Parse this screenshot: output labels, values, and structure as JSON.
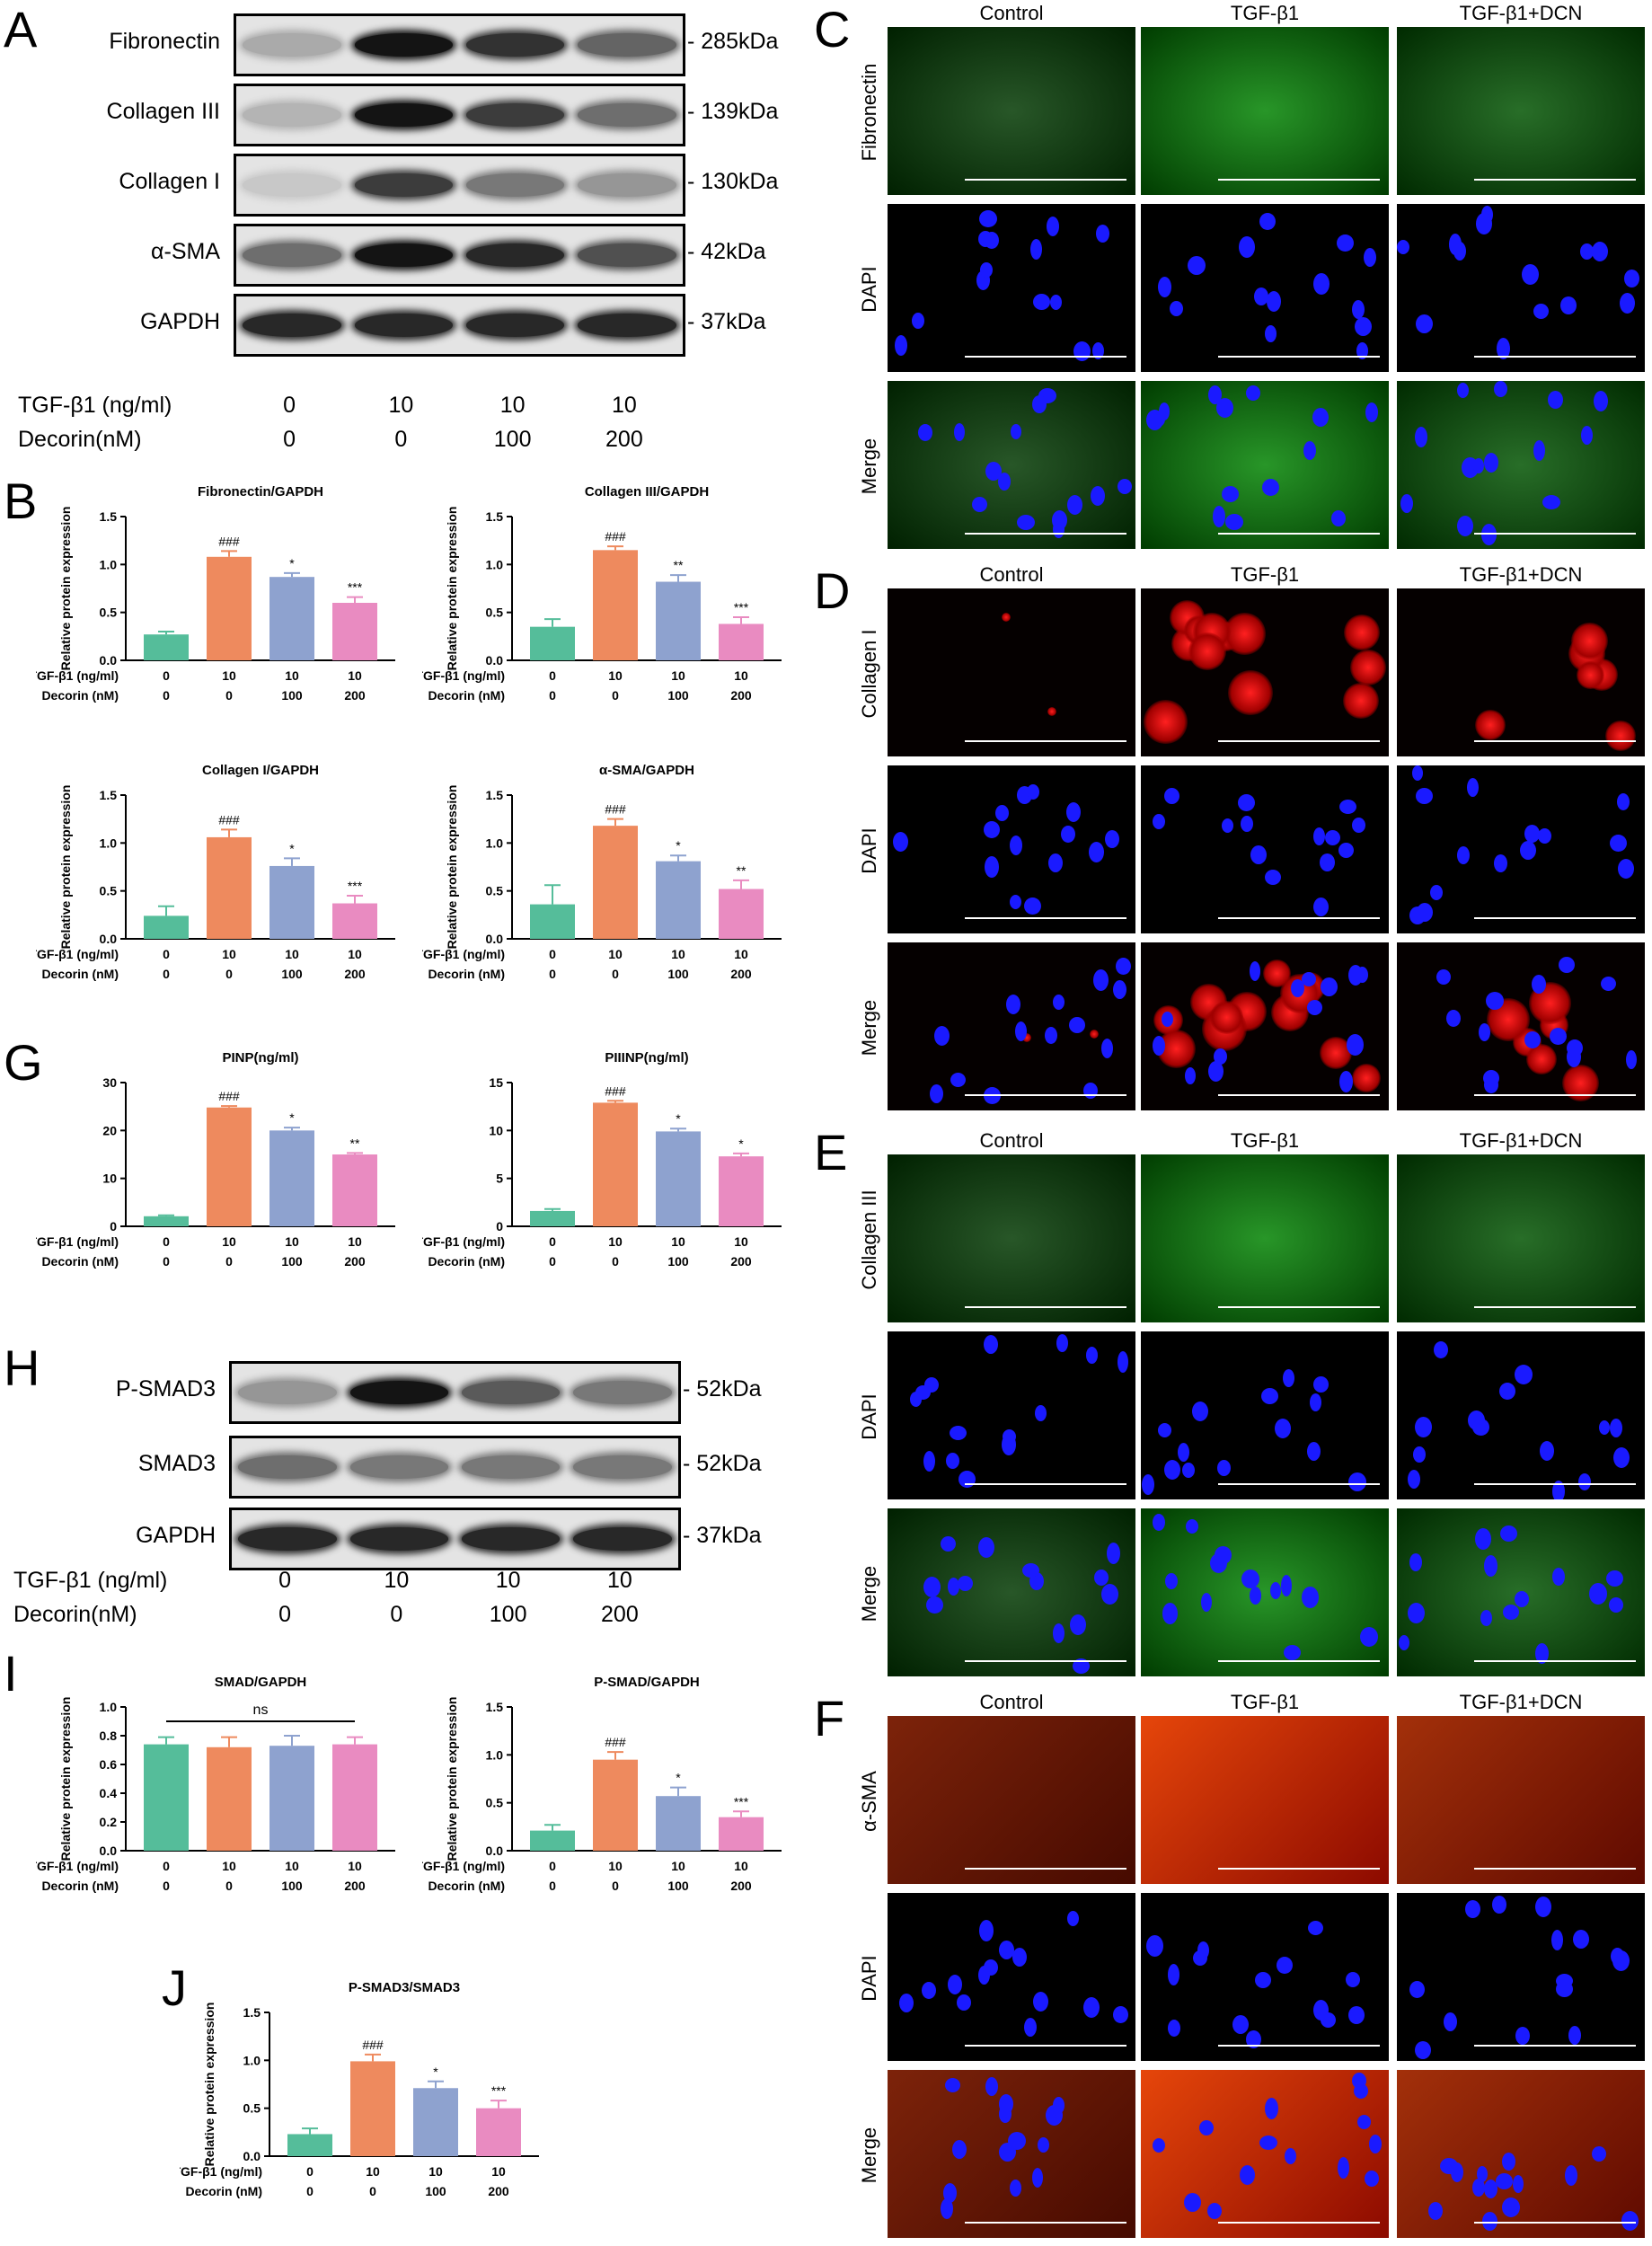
{
  "panels": {
    "A": "A",
    "B": "B",
    "C": "C",
    "D": "D",
    "E": "E",
    "F": "F",
    "G": "G",
    "H": "H",
    "I": "I",
    "J": "J"
  },
  "blotA": {
    "rows": [
      {
        "label": "Fibronectin",
        "kda": "- 285kDa",
        "intensity": [
          0.25,
          1.0,
          0.85,
          0.6
        ]
      },
      {
        "label": "Collagen III",
        "kda": "- 139kDa",
        "intensity": [
          0.2,
          1.0,
          0.8,
          0.55
        ]
      },
      {
        "label": "Collagen I",
        "kda": "- 130kDa",
        "intensity": [
          0.1,
          0.8,
          0.5,
          0.35
        ]
      },
      {
        "label": "α-SMA",
        "kda": "- 42kDa",
        "intensity": [
          0.55,
          1.0,
          0.9,
          0.7
        ]
      },
      {
        "label": "GAPDH",
        "kda": "- 37kDa",
        "intensity": [
          0.9,
          0.9,
          0.9,
          0.9
        ]
      }
    ],
    "cond_labels": [
      "TGF-β1 (ng/ml)",
      "Decorin(nM)"
    ],
    "tgf": [
      "0",
      "10",
      "10",
      "10"
    ],
    "decorin": [
      "0",
      "0",
      "100",
      "200"
    ]
  },
  "blotH": {
    "rows": [
      {
        "label": "P-SMAD3",
        "kda": "- 52kDa",
        "intensity": [
          0.35,
          1.0,
          0.65,
          0.5
        ]
      },
      {
        "label": "SMAD3",
        "kda": "- 52kDa",
        "intensity": [
          0.55,
          0.5,
          0.5,
          0.5
        ]
      },
      {
        "label": "GAPDH",
        "kda": "- 37kDa",
        "intensity": [
          0.9,
          0.9,
          0.9,
          0.9
        ]
      }
    ],
    "cond_labels": [
      "TGF-β1 (ng/ml)",
      "Decorin(nM)"
    ],
    "tgf": [
      "0",
      "10",
      "10",
      "10"
    ],
    "decorin": [
      "0",
      "0",
      "100",
      "200"
    ]
  },
  "colors": {
    "control": "#55bd9a",
    "tgf": "#ee8a5e",
    "dcn100": "#8ea2cf",
    "dcn200": "#e98bc1"
  },
  "chart_data": [
    {
      "id": "B1",
      "type": "bar",
      "title": "Fibronectin/GAPDH",
      "ylabel": "Relative protein expression",
      "ylim": [
        0,
        1.5
      ],
      "yticks": [
        "0.0",
        "0.5",
        "1.0",
        "1.5"
      ],
      "values": [
        0.27,
        1.08,
        0.87,
        0.6
      ],
      "errors": [
        0.03,
        0.06,
        0.04,
        0.06
      ],
      "sig": [
        "",
        "###",
        "*",
        "***"
      ],
      "tgf": [
        "0",
        "10",
        "10",
        "10"
      ],
      "decorin": [
        "0",
        "0",
        "100",
        "200"
      ],
      "row_labels": [
        "TGF-β1 (ng/ml)",
        "Decorin (nM)"
      ]
    },
    {
      "id": "B2",
      "type": "bar",
      "title": "Collagen III/GAPDH",
      "ylabel": "Relative protein expression",
      "ylim": [
        0,
        1.5
      ],
      "yticks": [
        "0.0",
        "0.5",
        "1.0",
        "1.5"
      ],
      "values": [
        0.35,
        1.15,
        0.82,
        0.38
      ],
      "errors": [
        0.08,
        0.04,
        0.07,
        0.07
      ],
      "sig": [
        "",
        "###",
        "**",
        "***"
      ],
      "tgf": [
        "0",
        "10",
        "10",
        "10"
      ],
      "decorin": [
        "0",
        "0",
        "100",
        "200"
      ],
      "row_labels": [
        "TGF-β1 (ng/ml)",
        "Decorin (nM)"
      ]
    },
    {
      "id": "B3",
      "type": "bar",
      "title": "Collagen I/GAPDH",
      "ylabel": "Relative protein expression",
      "ylim": [
        0,
        1.5
      ],
      "yticks": [
        "0.0",
        "0.5",
        "1.0",
        "1.5"
      ],
      "values": [
        0.24,
        1.06,
        0.76,
        0.37
      ],
      "errors": [
        0.1,
        0.08,
        0.08,
        0.08
      ],
      "sig": [
        "",
        "###",
        "*",
        "***"
      ],
      "tgf": [
        "0",
        "10",
        "10",
        "10"
      ],
      "decorin": [
        "0",
        "0",
        "100",
        "200"
      ],
      "row_labels": [
        "TGF-β1 (ng/ml)",
        "Decorin (nM)"
      ]
    },
    {
      "id": "B4",
      "type": "bar",
      "title": "α-SMA/GAPDH",
      "ylabel": "Relative protein expression",
      "ylim": [
        0,
        1.5
      ],
      "yticks": [
        "0.0",
        "0.5",
        "1.0",
        "1.5"
      ],
      "values": [
        0.36,
        1.18,
        0.81,
        0.52
      ],
      "errors": [
        0.2,
        0.07,
        0.06,
        0.09
      ],
      "sig": [
        "",
        "###",
        "*",
        "**"
      ],
      "tgf": [
        "0",
        "10",
        "10",
        "10"
      ],
      "decorin": [
        "0",
        "0",
        "100",
        "200"
      ],
      "row_labels": [
        "TGF-β1 (ng/ml)",
        "Decorin (nM)"
      ]
    },
    {
      "id": "G1",
      "type": "bar",
      "title": "PINP(ng/ml)",
      "ylabel": "",
      "ylim": [
        0,
        30
      ],
      "yticks": [
        "0",
        "10",
        "20",
        "30"
      ],
      "values": [
        2.1,
        24.8,
        20.0,
        15.0
      ],
      "errors": [
        0.2,
        0.3,
        0.6,
        0.3
      ],
      "sig": [
        "",
        "###",
        "*",
        "**"
      ],
      "tgf": [
        "0",
        "10",
        "10",
        "10"
      ],
      "decorin": [
        "0",
        "0",
        "100",
        "200"
      ],
      "row_labels": [
        "TGF-β1 (ng/ml)",
        "Decorin (nM)"
      ]
    },
    {
      "id": "G2",
      "type": "bar",
      "title": "PIIINP(ng/ml)",
      "ylabel": "",
      "ylim": [
        0,
        15
      ],
      "yticks": [
        "0",
        "5",
        "10",
        "15"
      ],
      "values": [
        1.6,
        12.9,
        9.9,
        7.3
      ],
      "errors": [
        0.2,
        0.2,
        0.3,
        0.3
      ],
      "sig": [
        "",
        "###",
        "*",
        "*"
      ],
      "tgf": [
        "0",
        "10",
        "10",
        "10"
      ],
      "decorin": [
        "0",
        "0",
        "100",
        "200"
      ],
      "row_labels": [
        "TGF-β1 (ng/ml)",
        "Decorin (nM)"
      ]
    },
    {
      "id": "I1",
      "type": "bar",
      "title": "SMAD/GAPDH",
      "ylabel": "Relative protein expression",
      "ylim": [
        0,
        1.0
      ],
      "yticks": [
        "0.0",
        "0.2",
        "0.4",
        "0.6",
        "0.8",
        "1.0"
      ],
      "values": [
        0.74,
        0.72,
        0.73,
        0.74
      ],
      "errors": [
        0.05,
        0.07,
        0.07,
        0.05
      ],
      "sig": [
        "",
        "",
        "",
        ""
      ],
      "bracket": "ns",
      "tgf": [
        "0",
        "10",
        "10",
        "10"
      ],
      "decorin": [
        "0",
        "0",
        "100",
        "200"
      ],
      "row_labels": [
        "TGF-β1 (ng/ml)",
        "Decorin (nM)"
      ]
    },
    {
      "id": "I2",
      "type": "bar",
      "title": "P-SMAD/GAPDH",
      "ylabel": "Relative protein expression",
      "ylim": [
        0,
        1.5
      ],
      "yticks": [
        "0.0",
        "0.5",
        "1.0",
        "1.5"
      ],
      "values": [
        0.21,
        0.95,
        0.57,
        0.35
      ],
      "errors": [
        0.06,
        0.08,
        0.09,
        0.06
      ],
      "sig": [
        "",
        "###",
        "*",
        "***"
      ],
      "tgf": [
        "0",
        "10",
        "10",
        "10"
      ],
      "decorin": [
        "0",
        "0",
        "100",
        "200"
      ],
      "row_labels": [
        "TGF-β1 (ng/ml)",
        "Decorin (nM)"
      ]
    },
    {
      "id": "J1",
      "type": "bar",
      "title": "P-SMAD3/SMAD3",
      "ylabel": "Relative protein expression",
      "ylim": [
        0,
        1.5
      ],
      "yticks": [
        "0.0",
        "0.5",
        "1.0",
        "1.5"
      ],
      "values": [
        0.23,
        0.99,
        0.71,
        0.5
      ],
      "errors": [
        0.06,
        0.07,
        0.07,
        0.08
      ],
      "sig": [
        "",
        "###",
        "*",
        "***"
      ],
      "tgf": [
        "0",
        "10",
        "10",
        "10"
      ],
      "decorin": [
        "0",
        "0",
        "100",
        "200"
      ],
      "row_labels": [
        "TGF-β1 (ng/ml)",
        "Decorin (nM)"
      ]
    }
  ],
  "fluor": {
    "columns": [
      "Control",
      "TGF-β1",
      "TGF-β1+DCN"
    ],
    "panels": [
      {
        "id": "C",
        "rows": [
          "Fibronectin",
          "DAPI",
          "Merge"
        ],
        "color": "green"
      },
      {
        "id": "D",
        "rows": [
          "Collagen I",
          "DAPI",
          "Merge"
        ],
        "color": "red"
      },
      {
        "id": "E",
        "rows": [
          "Collagen III",
          "DAPI",
          "Merge"
        ],
        "color": "green"
      },
      {
        "id": "F",
        "rows": [
          "α-SMA",
          "DAPI",
          "Merge"
        ],
        "color": "orange"
      }
    ]
  }
}
